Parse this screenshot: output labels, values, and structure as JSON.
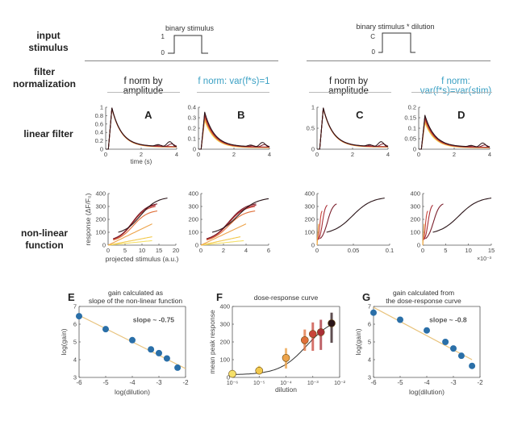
{
  "row_labels": {
    "input_stimulus": [
      "input",
      "stimulus"
    ],
    "filter_normalization": [
      "filter",
      "normalization"
    ],
    "linear_filter": "linear filter",
    "nonlinear_function": [
      "non-linear",
      "function"
    ]
  },
  "stimulus": {
    "left": {
      "title": "binary stimulus",
      "high_label": "1",
      "low_label": "0"
    },
    "right": {
      "title": "binary stimulus * dilution",
      "high_label": "C",
      "low_label": "0"
    }
  },
  "column_headers": [
    {
      "text": "f norm by amplitude",
      "highlight": false
    },
    {
      "text": "f norm: var(f*s)=1",
      "highlight": true
    },
    {
      "text": "f norm by amplitude",
      "highlight": false
    },
    {
      "text": "f norm: var(f*s)=var(stim)",
      "highlight": true
    }
  ],
  "colors": {
    "highlight": "#3aa0c4",
    "series": [
      "#f5e06a",
      "#f2c94c",
      "#eda34a",
      "#e0703a",
      "#c9453a",
      "#a92e36",
      "#7a1f2c",
      "#2a1418"
    ],
    "scatter_point": "#2a6fa8",
    "fit_line": "#e8c27a"
  },
  "chart_data": [
    {
      "id": "A",
      "type": "line",
      "panel_label": "A",
      "xlabel": "time (s)",
      "ylabel": "",
      "xlim": [
        0,
        4
      ],
      "ylim": [
        0,
        1
      ],
      "xticks": [
        "0",
        "2",
        "4"
      ],
      "yticks": [
        "0",
        "0.2",
        "0.4",
        "0.6",
        "0.8",
        "1"
      ],
      "ytick_values": [
        0,
        0.2,
        0.4,
        0.6,
        0.8,
        1
      ],
      "peak": 1.0,
      "series_count": 8,
      "description": "normalized filter: rise to peak 1 at ~0.35 s, decay to ~0.05 by 4 s"
    },
    {
      "id": "B",
      "type": "line",
      "panel_label": "B",
      "xlabel": "",
      "ylabel": "",
      "xlim": [
        0,
        4
      ],
      "ylim": [
        0,
        0.4
      ],
      "xticks": [
        "0",
        "2",
        "4"
      ],
      "yticks": [
        "0",
        "0.1",
        "0.2",
        "0.3",
        "0.4"
      ],
      "ytick_values": [
        0,
        0.1,
        0.2,
        0.3,
        0.4
      ],
      "peak": 0.36,
      "series_count": 8
    },
    {
      "id": "C",
      "type": "line",
      "panel_label": "C",
      "xlabel": "",
      "ylabel": "",
      "xlim": [
        0,
        4
      ],
      "ylim": [
        0,
        1
      ],
      "xticks": [
        "0",
        "2",
        "4"
      ],
      "yticks": [
        "0",
        "0.5",
        "1"
      ],
      "ytick_values": [
        0,
        0.5,
        1
      ],
      "peak": 1.0,
      "series_count": 8
    },
    {
      "id": "D",
      "type": "line",
      "panel_label": "D",
      "xlabel": "",
      "ylabel": "",
      "xlim": [
        0,
        4
      ],
      "ylim": [
        0,
        0.2
      ],
      "xticks": [
        "0",
        "2",
        "4"
      ],
      "yticks": [
        "0",
        "0.05",
        "0.1",
        "0.15",
        "0.2"
      ],
      "ytick_values": [
        0,
        0.05,
        0.1,
        0.15,
        0.2
      ],
      "peak": 0.165,
      "series_count": 8
    },
    {
      "id": "NL-A",
      "type": "line",
      "xlabel": "projected stimulus (a.u.)",
      "ylabel": "response (ΔF/F₀)",
      "xlim": [
        0,
        20
      ],
      "ylim": [
        0,
        400
      ],
      "xticks": [
        "0",
        "5",
        "10",
        "15",
        "20"
      ],
      "yticks": [
        "0",
        "100",
        "200",
        "300",
        "400"
      ],
      "xtick_values": [
        0,
        5,
        10,
        15,
        20
      ],
      "ytick_values": [
        0,
        100,
        200,
        300,
        400
      ],
      "series": [
        {
          "x0": 0,
          "x1": 13,
          "y0": 0,
          "y1": 35
        },
        {
          "x0": 0,
          "x1": 13,
          "y0": 0,
          "y1": 65
        },
        {
          "x0": 0,
          "x1": 13,
          "y0": 0,
          "y1": 165
        },
        {
          "x0": 1.5,
          "x1": 14.5,
          "y0": 40,
          "y1": 265
        },
        {
          "x0": 1.5,
          "x1": 14,
          "y0": 45,
          "y1": 300
        },
        {
          "x0": 1.5,
          "x1": 14,
          "y0": 50,
          "y1": 310
        },
        {
          "x0": 1.5,
          "x1": 14.5,
          "y0": 50,
          "y1": 320
        },
        {
          "x0": 3,
          "x1": 17.5,
          "y0": 100,
          "y1": 365
        }
      ]
    },
    {
      "id": "NL-B",
      "type": "line",
      "xlabel": "",
      "ylabel": "",
      "xlim": [
        0,
        6
      ],
      "ylim": [
        0,
        400
      ],
      "xticks": [
        "0",
        "2",
        "4",
        "6"
      ],
      "yticks": [
        "0",
        "100",
        "200",
        "300",
        "400"
      ],
      "xtick_values": [
        0,
        2,
        4,
        6
      ],
      "ytick_values": [
        0,
        100,
        200,
        300,
        400
      ],
      "series": [
        {
          "x0": 0,
          "x1": 3.8,
          "y0": 0,
          "y1": 35
        },
        {
          "x0": 0,
          "x1": 3.5,
          "y0": 0,
          "y1": 65
        },
        {
          "x0": 0,
          "x1": 4,
          "y0": 0,
          "y1": 165
        },
        {
          "x0": 0.5,
          "x1": 4.8,
          "y0": 40,
          "y1": 265
        },
        {
          "x0": 0.5,
          "x1": 4.8,
          "y0": 45,
          "y1": 300
        },
        {
          "x0": 0.5,
          "x1": 4.9,
          "y0": 50,
          "y1": 310
        },
        {
          "x0": 0.5,
          "x1": 4.9,
          "y0": 50,
          "y1": 320
        },
        {
          "x0": 1,
          "x1": 6,
          "y0": 100,
          "y1": 360
        }
      ]
    },
    {
      "id": "NL-C",
      "type": "line",
      "xlabel": "",
      "ylabel": "",
      "xlim": [
        0,
        0.1
      ],
      "ylim": [
        0,
        400
      ],
      "xticks": [
        "0",
        "0.05",
        "0.1"
      ],
      "yticks": [
        "0",
        "100",
        "200",
        "300",
        "400"
      ],
      "xtick_values": [
        0,
        0.05,
        0.1
      ],
      "ytick_values": [
        0,
        100,
        200,
        300,
        400
      ],
      "series": [
        {
          "x0": 0,
          "x1": 0.0003,
          "y0": 0,
          "y1": 35
        },
        {
          "x0": 0,
          "x1": 0.0006,
          "y0": 0,
          "y1": 65
        },
        {
          "x0": 0,
          "x1": 0.002,
          "y0": 0,
          "y1": 165
        },
        {
          "x0": 0.001,
          "x1": 0.007,
          "y0": 40,
          "y1": 265
        },
        {
          "x0": 0.002,
          "x1": 0.014,
          "y0": 45,
          "y1": 310
        },
        {
          "x0": 0.004,
          "x1": 0.027,
          "y0": 50,
          "y1": 320
        },
        {
          "x0": 0.013,
          "x1": 0.093,
          "y0": 100,
          "y1": 365
        }
      ]
    },
    {
      "id": "NL-D",
      "type": "line",
      "xlabel": "",
      "ylabel": "",
      "x_multiplier": "×10⁻³",
      "xlim": [
        0,
        15
      ],
      "ylim": [
        0,
        400
      ],
      "xticks": [
        "0",
        "5",
        "10",
        "15"
      ],
      "yticks": [
        "0",
        "100",
        "200",
        "300",
        "400"
      ],
      "xtick_values": [
        0,
        5,
        10,
        15
      ],
      "ytick_values": [
        0,
        100,
        200,
        300,
        400
      ],
      "series": [
        {
          "x0": 0,
          "x1": 0.05,
          "y0": 0,
          "y1": 35
        },
        {
          "x0": 0,
          "x1": 0.1,
          "y0": 0,
          "y1": 65
        },
        {
          "x0": 0,
          "x1": 0.3,
          "y0": 0,
          "y1": 165
        },
        {
          "x0": 0.15,
          "x1": 1.1,
          "y0": 40,
          "y1": 265
        },
        {
          "x0": 0.3,
          "x1": 2.2,
          "y0": 45,
          "y1": 310
        },
        {
          "x0": 0.6,
          "x1": 4.5,
          "y0": 50,
          "y1": 320
        },
        {
          "x0": 2.2,
          "x1": 15,
          "y0": 100,
          "y1": 365
        }
      ]
    },
    {
      "id": "E",
      "type": "scatter",
      "panel_label": "E",
      "title": [
        "gain calculated as",
        "slope of the non-linear function"
      ],
      "xlabel": "log(dilution)",
      "ylabel": "log(gain)",
      "xlim": [
        -6,
        -2
      ],
      "ylim": [
        3,
        7
      ],
      "xticks": [
        "-6",
        "-5",
        "-4",
        "-3",
        "-2"
      ],
      "yticks": [
        "3",
        "4",
        "5",
        "6",
        "7"
      ],
      "xtick_values": [
        -6,
        -5,
        -4,
        -3,
        -2
      ],
      "ytick_values": [
        3,
        4,
        5,
        6,
        7
      ],
      "annotation": "slope ~ -0.75",
      "x": [
        -6,
        -5,
        -4,
        -3.3,
        -3,
        -2.7,
        -2.3
      ],
      "y": [
        6.45,
        5.72,
        5.1,
        4.58,
        4.37,
        4.07,
        3.55
      ],
      "fit": {
        "x": [
          -6,
          -2
        ],
        "y": [
          6.5,
          3.5
        ]
      }
    },
    {
      "id": "F",
      "type": "scatter",
      "panel_label": "F",
      "title": [
        "dose-response curve"
      ],
      "xlabel": "dilution",
      "ylabel": "mean peak response",
      "xscale": "log",
      "xlim_exp": [
        -6,
        -2
      ],
      "ylim": [
        0,
        400
      ],
      "xticks": [
        "10⁻⁶",
        "10⁻⁵",
        "10⁻⁴",
        "10⁻³",
        "10⁻²"
      ],
      "yticks": [
        "0",
        "100",
        "200",
        "300",
        "400"
      ],
      "xtick_exps": [
        -6,
        -5,
        -4,
        -3,
        -2
      ],
      "ytick_values": [
        0,
        100,
        200,
        300,
        400
      ],
      "x_exp": [
        -6,
        -5,
        -4,
        -3.3,
        -3,
        -2.7,
        -2.3
      ],
      "y": [
        20,
        38,
        110,
        210,
        245,
        255,
        305
      ],
      "err_low": [
        10,
        20,
        50,
        150,
        150,
        155,
        195
      ],
      "err_high": [
        30,
        65,
        165,
        270,
        310,
        325,
        365
      ]
    },
    {
      "id": "G",
      "type": "scatter",
      "panel_label": "G",
      "title": [
        "gain calculated from",
        "the dose-response curve"
      ],
      "xlabel": "log(dilution)",
      "ylabel": "log(gain)",
      "xlim": [
        -6,
        -2
      ],
      "ylim": [
        3,
        7
      ],
      "xticks": [
        "-6",
        "-5",
        "-4",
        "-3",
        "-2"
      ],
      "yticks": [
        "3",
        "4",
        "5",
        "6",
        "7"
      ],
      "xtick_values": [
        -6,
        -5,
        -4,
        -3,
        -2
      ],
      "ytick_values": [
        3,
        4,
        5,
        6,
        7
      ],
      "annotation": "slope ~ -0.8",
      "x": [
        -6,
        -5,
        -4,
        -3.3,
        -3,
        -2.7,
        -2.3
      ],
      "y": [
        6.65,
        6.25,
        5.65,
        5.0,
        4.63,
        4.22,
        3.65
      ],
      "fit": {
        "x": [
          -6,
          -2.3
        ],
        "y": [
          6.95,
          4.0
        ]
      }
    }
  ]
}
